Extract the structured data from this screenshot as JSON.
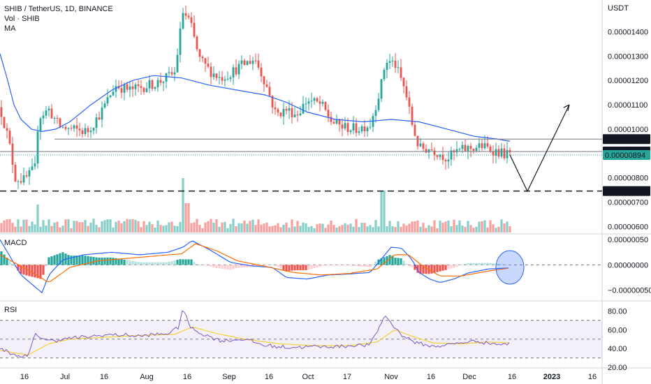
{
  "legend": {
    "symbol": "SHIB / TetherUS, 1D, BINANCE",
    "vol": "Vol · SHIB",
    "ma": "MA"
  },
  "price_axis": {
    "unit": "USDT",
    "ticks": [
      "0.00001400",
      "0.00001300",
      "0.00001200",
      "0.00001100",
      "0.00001000",
      "0.00000800",
      "0.00000700",
      "0.00000600"
    ]
  },
  "price_tags": [
    {
      "value": 9.59e-06,
      "label": "0.00000959",
      "bg": "#131722"
    },
    {
      "value": 9.08e-06,
      "label": "0.00000908",
      "bg": "#131722"
    },
    {
      "value": 8.94e-06,
      "label": "0.00000894",
      "bg": "#26a69a"
    },
    {
      "value": 7.46e-06,
      "label": "0.00000746",
      "bg": "#131722"
    }
  ],
  "macd_axis": {
    "label": "MACD",
    "ticks": [
      "0.00000050",
      "0.00000000",
      "−0.00000050"
    ]
  },
  "rsi_axis": {
    "label": "RSI",
    "ticks": [
      "80.00",
      "60.00",
      "40.00",
      "20.00"
    ]
  },
  "time_axis": [
    "16",
    "Jul",
    "16",
    "Aug",
    "16",
    "Sep",
    "16",
    "Oct",
    "17",
    "Nov",
    "16",
    "Dec",
    "16",
    "2023",
    "16"
  ],
  "colors": {
    "up": "#26a69a",
    "down": "#ef5350",
    "ma": "#2962ff",
    "signal": "#ff6d00",
    "rsi": "#7e57c2",
    "rsi_ma": "#f5d13a"
  },
  "chart_data": [
    {
      "type": "candlestick",
      "title": "SHIB / TetherUS, 1D, BINANCE",
      "ylim": [
        5.7e-06,
        1.53e-05
      ],
      "horizontal_lines": [
        9.59e-06,
        9.08e-06,
        7.46e-06
      ],
      "ma_series": [
        [
          0,
          1.31e-05
        ],
        [
          10,
          1.21e-05
        ],
        [
          20,
          1.1e-05
        ],
        [
          30,
          1.04e-05
        ],
        [
          45,
          1e-05
        ],
        [
          60,
          9.9e-06
        ],
        [
          80,
          1e-05
        ],
        [
          100,
          1.03e-05
        ],
        [
          130,
          1.1e-05
        ],
        [
          160,
          1.16e-05
        ],
        [
          190,
          1.2e-05
        ],
        [
          220,
          1.22e-05
        ],
        [
          260,
          1.21e-05
        ],
        [
          300,
          1.18e-05
        ],
        [
          340,
          1.16e-05
        ],
        [
          380,
          1.14e-05
        ],
        [
          410,
          1.11e-05
        ],
        [
          440,
          1.07e-05
        ],
        [
          480,
          1.04e-05
        ],
        [
          520,
          1.03e-05
        ],
        [
          560,
          1.04e-05
        ],
        [
          600,
          1.03e-05
        ],
        [
          640,
          1e-05
        ],
        [
          680,
          9.7e-06
        ],
        [
          710,
          9.6e-06
        ],
        [
          730,
          9.5e-06
        ]
      ],
      "projection": [
        [
          730,
          8.94e-06
        ],
        [
          755,
          7.45e-06
        ],
        [
          815,
          1.1e-05
        ]
      ]
    },
    {
      "type": "bar",
      "title": "Vol · SHIB"
    },
    {
      "type": "line",
      "title": "MACD",
      "ylim": [
        -7e-07,
        6e-07
      ],
      "zero_line": 0,
      "highlight_circle_x": 730
    },
    {
      "type": "line",
      "title": "RSI",
      "ylim": [
        20,
        90
      ],
      "band": [
        30,
        70
      ],
      "mid": 50
    }
  ]
}
